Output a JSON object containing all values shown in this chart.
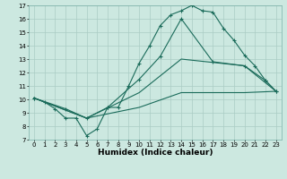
{
  "xlabel": "Humidex (Indice chaleur)",
  "background_color": "#cce8e0",
  "grid_color": "#aaccc4",
  "line_color": "#1a6b5a",
  "xlim": [
    -0.5,
    23.5
  ],
  "ylim": [
    7,
    17
  ],
  "line1_x": [
    0,
    1,
    2,
    3,
    4,
    5,
    6,
    7,
    8,
    9,
    10,
    11,
    12,
    13,
    14,
    15,
    16,
    17,
    18,
    19,
    20,
    21,
    22,
    23
  ],
  "line1_y": [
    10.1,
    9.8,
    9.3,
    8.6,
    8.6,
    7.3,
    7.8,
    9.4,
    9.4,
    11.0,
    12.7,
    14.0,
    15.5,
    16.3,
    16.6,
    17.0,
    16.6,
    16.5,
    15.3,
    14.4,
    13.3,
    12.5,
    11.4,
    10.6
  ],
  "line2_x": [
    0,
    3,
    5,
    7,
    10,
    12,
    14,
    17,
    20,
    22,
    23
  ],
  "line2_y": [
    10.1,
    9.3,
    8.6,
    9.4,
    11.5,
    13.2,
    16.0,
    12.8,
    12.5,
    11.4,
    10.6
  ],
  "line3_x": [
    0,
    5,
    10,
    14,
    20,
    23
  ],
  "line3_y": [
    10.1,
    8.6,
    10.5,
    13.0,
    12.5,
    10.6
  ],
  "line4_x": [
    0,
    5,
    10,
    14,
    20,
    23
  ],
  "line4_y": [
    10.1,
    8.6,
    9.4,
    10.5,
    10.5,
    10.6
  ],
  "yticks": [
    7,
    8,
    9,
    10,
    11,
    12,
    13,
    14,
    15,
    16,
    17
  ],
  "xticks": [
    0,
    1,
    2,
    3,
    4,
    5,
    6,
    7,
    8,
    9,
    10,
    11,
    12,
    13,
    14,
    15,
    16,
    17,
    18,
    19,
    20,
    21,
    22,
    23
  ],
  "tick_fontsize": 5.0,
  "xlabel_fontsize": 6.5,
  "linewidth": 0.8,
  "markersize": 3.0
}
